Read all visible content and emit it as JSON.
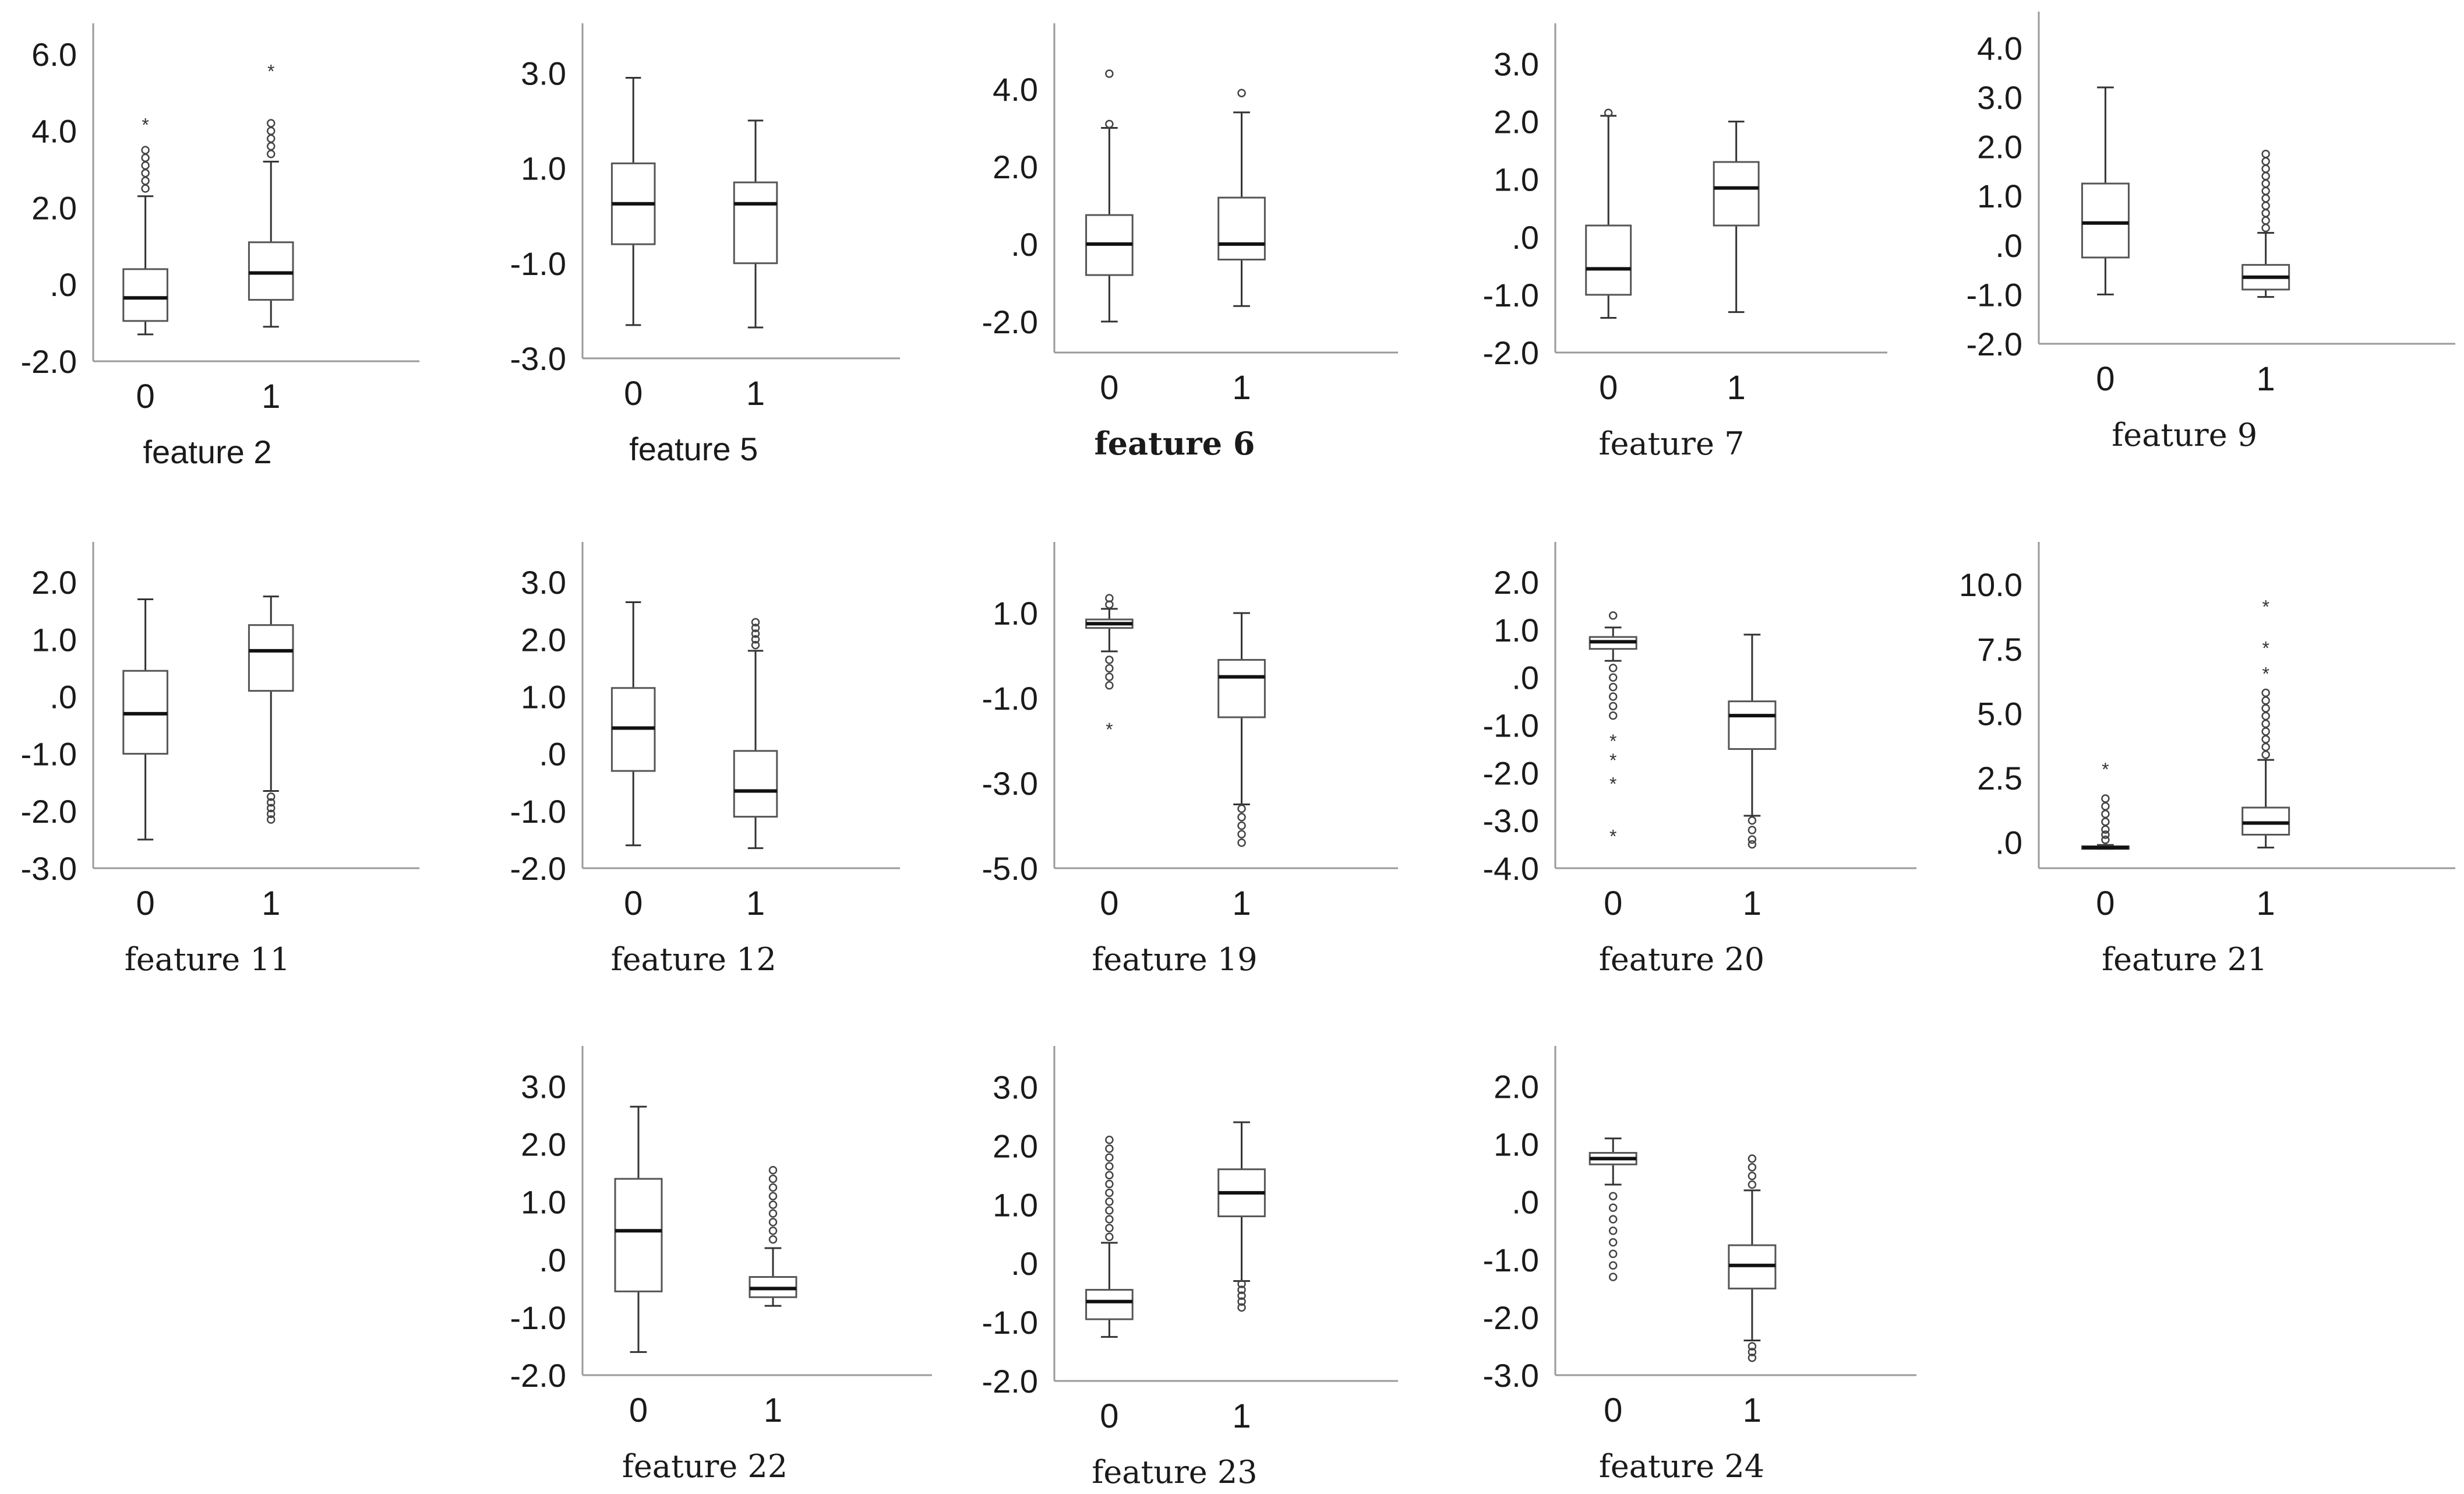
{
  "chart_data": [
    {
      "type": "boxplot",
      "title": "feature 2",
      "ylim": [
        -2.0,
        6.5
      ],
      "yticks": [
        -2,
        0,
        2,
        4,
        6
      ],
      "ytick_labels": [
        "-2.0",
        ".0",
        "2.0",
        "4.0",
        "6.0"
      ],
      "categories": [
        "0",
        "1"
      ],
      "boxes": [
        {
          "whislo": -1.3,
          "q1": -0.95,
          "med": -0.35,
          "q3": 0.4,
          "whishi": 2.3,
          "outliers": [
            2.5,
            2.7,
            2.9,
            3.1,
            3.3,
            3.5
          ],
          "extremes": [
            4.2
          ]
        },
        {
          "whislo": -1.1,
          "q1": -0.4,
          "med": 0.3,
          "q3": 1.1,
          "whishi": 3.2,
          "outliers": [
            3.4,
            3.6,
            3.8,
            4.0,
            4.2
          ],
          "extremes": [
            5.6
          ]
        }
      ]
    },
    {
      "type": "boxplot",
      "title": "feature 5",
      "ylim": [
        -3.0,
        3.8
      ],
      "yticks": [
        -3,
        -1,
        1,
        3
      ],
      "ytick_labels": [
        "-3.0",
        "-1.0",
        "1.0",
        "3.0"
      ],
      "categories": [
        "0",
        "1"
      ],
      "boxes": [
        {
          "whislo": -2.3,
          "q1": -0.6,
          "med": 0.25,
          "q3": 1.1,
          "whishi": 2.9,
          "outliers": [],
          "extremes": []
        },
        {
          "whislo": -2.35,
          "q1": -1.0,
          "med": 0.25,
          "q3": 0.7,
          "whishi": 2.0,
          "outliers": [],
          "extremes": []
        }
      ]
    },
    {
      "type": "boxplot",
      "title": "feature 6",
      "ylim": [
        -2.8,
        5.4
      ],
      "yticks": [
        -2,
        0,
        2,
        4
      ],
      "ytick_labels": [
        "-2.0",
        ".0",
        "2.0",
        "4.0"
      ],
      "categories": [
        "0",
        "1"
      ],
      "boxes": [
        {
          "whislo": -2.0,
          "q1": -0.8,
          "med": 0.0,
          "q3": 0.75,
          "whishi": 3.0,
          "outliers": [
            3.1,
            4.4
          ],
          "extremes": []
        },
        {
          "whislo": -1.6,
          "q1": -0.4,
          "med": 0.0,
          "q3": 1.2,
          "whishi": 3.4,
          "outliers": [
            3.9
          ],
          "extremes": []
        }
      ]
    },
    {
      "type": "boxplot",
      "title": "feature 7",
      "ylim": [
        -2.0,
        3.5
      ],
      "yticks": [
        -2,
        -1,
        0,
        1,
        2,
        3
      ],
      "ytick_labels": [
        "-2.0",
        "-1.0",
        ".0",
        "1.0",
        "2.0",
        "3.0"
      ],
      "categories": [
        "0",
        "1"
      ],
      "boxes": [
        {
          "whislo": -1.4,
          "q1": -1.0,
          "med": -0.55,
          "q3": 0.2,
          "whishi": 2.1,
          "outliers": [
            2.15
          ],
          "extremes": []
        },
        {
          "whislo": -1.3,
          "q1": 0.2,
          "med": 0.85,
          "q3": 1.3,
          "whishi": 2.0,
          "outliers": [],
          "extremes": []
        }
      ]
    },
    {
      "type": "boxplot",
      "title": "feature 9",
      "ylim": [
        -2.0,
        4.5
      ],
      "yticks": [
        -2,
        -1,
        0,
        1,
        2,
        3,
        4
      ],
      "ytick_labels": [
        "-2.0",
        "-1.0",
        ".0",
        "1.0",
        "2.0",
        "3.0",
        "4.0"
      ],
      "categories": [
        "0",
        "1"
      ],
      "boxes": [
        {
          "whislo": -1.0,
          "q1": -0.25,
          "med": 0.45,
          "q3": 1.25,
          "whishi": 3.2,
          "outliers": [],
          "extremes": []
        },
        {
          "whislo": -1.05,
          "q1": -0.9,
          "med": -0.65,
          "q3": -0.4,
          "whishi": 0.25,
          "outliers": [
            0.35,
            0.5,
            0.65,
            0.8,
            0.95,
            1.1,
            1.25,
            1.4,
            1.55,
            1.7,
            1.85
          ],
          "extremes": []
        }
      ]
    },
    {
      "type": "boxplot",
      "title": "feature 11",
      "ylim": [
        -3.0,
        2.5
      ],
      "yticks": [
        -3,
        -2,
        -1,
        0,
        1,
        2
      ],
      "ytick_labels": [
        "-3.0",
        "-2.0",
        "-1.0",
        ".0",
        "1.0",
        "2.0"
      ],
      "categories": [
        "0",
        "1"
      ],
      "boxes": [
        {
          "whislo": -2.5,
          "q1": -1.0,
          "med": -0.3,
          "q3": 0.45,
          "whishi": 1.7,
          "outliers": [],
          "extremes": []
        },
        {
          "whislo": -1.65,
          "q1": 0.1,
          "med": 0.8,
          "q3": 1.25,
          "whishi": 1.75,
          "outliers": [
            -1.75,
            -1.85,
            -1.95,
            -2.05,
            -2.15
          ],
          "extremes": []
        }
      ]
    },
    {
      "type": "boxplot",
      "title": "feature 12",
      "ylim": [
        -2.0,
        3.5
      ],
      "yticks": [
        -2,
        -1,
        0,
        1,
        2,
        3
      ],
      "ytick_labels": [
        "-2.0",
        "-1.0",
        ".0",
        "1.0",
        "2.0",
        "3.0"
      ],
      "categories": [
        "0",
        "1"
      ],
      "boxes": [
        {
          "whislo": -1.6,
          "q1": -0.3,
          "med": 0.45,
          "q3": 1.15,
          "whishi": 2.65,
          "outliers": [],
          "extremes": []
        },
        {
          "whislo": -1.65,
          "q1": -1.1,
          "med": -0.65,
          "q3": 0.05,
          "whishi": 1.8,
          "outliers": [
            1.9,
            2.0,
            2.1,
            2.2,
            2.3
          ],
          "extremes": []
        }
      ]
    },
    {
      "type": "boxplot",
      "title": "feature 19",
      "ylim": [
        -5.0,
        2.4
      ],
      "yticks": [
        -5,
        -3,
        -1,
        1
      ],
      "ytick_labels": [
        "-5.0",
        "-3.0",
        "-1.0",
        "1.0"
      ],
      "categories": [
        "0",
        "1"
      ],
      "boxes": [
        {
          "whislo": 0.1,
          "q1": 0.65,
          "med": 0.75,
          "q3": 0.85,
          "whishi": 1.1,
          "outliers": [
            -0.1,
            -0.3,
            -0.5,
            -0.7,
            1.2,
            1.35
          ],
          "extremes": [
            -1.7
          ]
        },
        {
          "whislo": -3.5,
          "q1": -1.45,
          "med": -0.5,
          "q3": -0.1,
          "whishi": 1.0,
          "outliers": [
            -3.6,
            -3.8,
            -4.0,
            -4.2,
            -4.4
          ],
          "extremes": []
        }
      ]
    },
    {
      "type": "boxplot",
      "title": "feature 20",
      "ylim": [
        -4.0,
        2.6
      ],
      "yticks": [
        -4,
        -3,
        -2,
        -1,
        0,
        1,
        2
      ],
      "ytick_labels": [
        "-4.0",
        "-3.0",
        "-2.0",
        "-1.0",
        ".0",
        "1.0",
        "2.0"
      ],
      "categories": [
        "0",
        "1"
      ],
      "boxes": [
        {
          "whislo": 0.35,
          "q1": 0.6,
          "med": 0.75,
          "q3": 0.85,
          "whishi": 1.05,
          "outliers": [
            0.2,
            0.0,
            -0.2,
            -0.4,
            -0.6,
            -0.8,
            1.3
          ],
          "extremes": [
            -1.3,
            -1.7,
            -2.2,
            -3.3
          ]
        },
        {
          "whislo": -2.9,
          "q1": -1.5,
          "med": -0.8,
          "q3": -0.5,
          "whishi": 0.9,
          "outliers": [
            -3.0,
            -3.2,
            -3.4,
            -3.5
          ],
          "extremes": []
        }
      ]
    },
    {
      "type": "boxplot",
      "title": "feature 21",
      "ylim": [
        -1.0,
        11.2
      ],
      "yticks": [
        0,
        2.5,
        5,
        7.5,
        10
      ],
      "ytick_labels": [
        ".0",
        "2.5",
        "5.0",
        "7.5",
        "10.0"
      ],
      "categories": [
        "0",
        "1"
      ],
      "boxes": [
        {
          "whislo": -0.25,
          "q1": -0.25,
          "med": -0.2,
          "q3": -0.15,
          "whishi": -0.1,
          "outliers": [
            0.1,
            0.3,
            0.5,
            0.8,
            1.1,
            1.4,
            1.7
          ],
          "extremes": [
            2.9
          ]
        },
        {
          "whislo": -0.2,
          "q1": 0.3,
          "med": 0.75,
          "q3": 1.35,
          "whishi": 3.2,
          "outliers": [
            3.4,
            3.7,
            4.0,
            4.3,
            4.6,
            4.9,
            5.2,
            5.5,
            5.8
          ],
          "extremes": [
            6.6,
            7.6,
            9.2
          ]
        }
      ]
    },
    {
      "type": "boxplot",
      "title": "feature 22",
      "ylim": [
        -2.0,
        3.5
      ],
      "yticks": [
        -2,
        -1,
        0,
        1,
        2,
        3
      ],
      "ytick_labels": [
        "-2.0",
        "-1.0",
        ".0",
        "1.0",
        "2.0",
        "3.0"
      ],
      "categories": [
        "0",
        "1"
      ],
      "boxes": [
        {
          "whislo": -1.6,
          "q1": -0.55,
          "med": 0.5,
          "q3": 1.4,
          "whishi": 2.65,
          "outliers": [],
          "extremes": []
        },
        {
          "whislo": -0.8,
          "q1": -0.65,
          "med": -0.5,
          "q3": -0.3,
          "whishi": 0.2,
          "outliers": [
            0.35,
            0.5,
            0.65,
            0.8,
            0.95,
            1.1,
            1.25,
            1.4,
            1.55
          ],
          "extremes": []
        }
      ]
    },
    {
      "type": "boxplot",
      "title": "feature 23",
      "ylim": [
        -2.0,
        3.5
      ],
      "yticks": [
        -2,
        -1,
        0,
        1,
        2,
        3
      ],
      "ytick_labels": [
        "-2.0",
        "-1.0",
        ".0",
        "1.0",
        "2.0",
        "3.0"
      ],
      "categories": [
        "0",
        "1"
      ],
      "boxes": [
        {
          "whislo": -1.25,
          "q1": -0.95,
          "med": -0.65,
          "q3": -0.45,
          "whishi": 0.35,
          "outliers": [
            0.45,
            0.6,
            0.75,
            0.9,
            1.05,
            1.2,
            1.35,
            1.5,
            1.65,
            1.8,
            1.95,
            2.1
          ],
          "extremes": []
        },
        {
          "whislo": -0.3,
          "q1": 0.8,
          "med": 1.2,
          "q3": 1.6,
          "whishi": 2.4,
          "outliers": [
            -0.35,
            -0.45,
            -0.55,
            -0.65,
            -0.75
          ],
          "extremes": []
        }
      ]
    },
    {
      "type": "boxplot",
      "title": "feature 24",
      "ylim": [
        -3.0,
        2.5
      ],
      "yticks": [
        -3,
        -2,
        -1,
        0,
        1,
        2
      ],
      "ytick_labels": [
        "-3.0",
        "-2.0",
        "-1.0",
        ".0",
        "1.0",
        "2.0"
      ],
      "categories": [
        "0",
        "1"
      ],
      "boxes": [
        {
          "whislo": 0.3,
          "q1": 0.65,
          "med": 0.75,
          "q3": 0.85,
          "whishi": 1.1,
          "outliers": [
            0.1,
            -0.1,
            -0.3,
            -0.5,
            -0.7,
            -0.9,
            -1.1,
            -1.3
          ],
          "extremes": []
        },
        {
          "whislo": -2.4,
          "q1": -1.5,
          "med": -1.1,
          "q3": -0.75,
          "whishi": 0.2,
          "outliers": [
            0.3,
            0.45,
            0.6,
            0.75,
            -2.5,
            -2.6,
            -2.7
          ],
          "extremes": []
        }
      ]
    }
  ]
}
